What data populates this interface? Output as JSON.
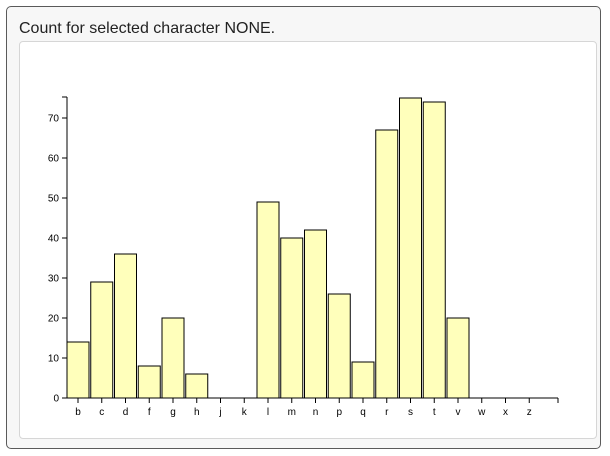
{
  "card": {
    "title": "Count for selected character NONE."
  },
  "colors": {
    "bar_fill": "#ffffbb",
    "bar_stroke": "#000000",
    "axis": "#000000"
  },
  "chart_data": {
    "type": "bar",
    "title": "",
    "xlabel": "",
    "ylabel": "",
    "categories": [
      "b",
      "c",
      "d",
      "f",
      "g",
      "h",
      "j",
      "k",
      "l",
      "m",
      "n",
      "p",
      "q",
      "r",
      "s",
      "t",
      "v",
      "w",
      "x",
      "z"
    ],
    "values": [
      14,
      29,
      36,
      8,
      20,
      6,
      0,
      0,
      49,
      40,
      42,
      26,
      9,
      67,
      75,
      74,
      20,
      0,
      0,
      0
    ],
    "ylim": [
      0,
      75
    ],
    "yticks": [
      0,
      10,
      20,
      30,
      40,
      50,
      60,
      70
    ],
    "grid": false,
    "legend": "none"
  }
}
